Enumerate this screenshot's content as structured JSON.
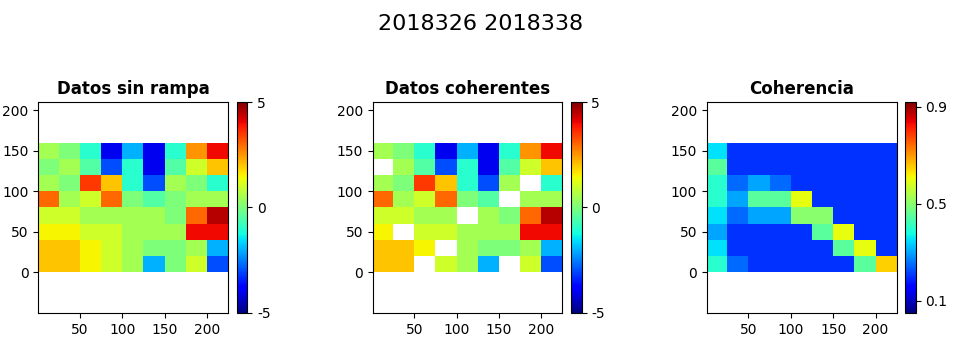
{
  "suptitle": "2018326 2018338",
  "chart_data": [
    {
      "type": "heatmap",
      "title": "Datos sin rampa",
      "x_edges": [
        0,
        25,
        50,
        75,
        100,
        125,
        150,
        175,
        200,
        225
      ],
      "y_edges": [
        0,
        20,
        40,
        60,
        80,
        100,
        120,
        140,
        160
      ],
      "z": [
        [
          2,
          2,
          1.5,
          1,
          0.5,
          -2,
          0,
          1,
          -3
        ],
        [
          2,
          2,
          1.5,
          1,
          0.5,
          0,
          0,
          0.5,
          -2
        ],
        [
          1.5,
          1.5,
          1,
          1,
          0.5,
          0.5,
          0.5,
          4,
          4
        ],
        [
          1,
          1,
          0.5,
          0.5,
          0.5,
          0.5,
          0,
          3,
          4.5
        ],
        [
          3,
          0.5,
          1,
          3,
          0,
          -0.5,
          0,
          0.5,
          0.5
        ],
        [
          0.5,
          0,
          3.5,
          2,
          -1,
          -3,
          0.5,
          0,
          -1
        ],
        [
          0,
          0.5,
          -0.5,
          -3,
          -1,
          -4,
          -0.5,
          1,
          2
        ],
        [
          0.5,
          0,
          -1,
          -4,
          -2,
          -4,
          -1,
          2.5,
          4
        ]
      ],
      "xlim": [
        1,
        225
      ],
      "xticks": [
        50,
        100,
        150,
        200
      ],
      "ylim": [
        -50,
        210
      ],
      "yticks": [
        0,
        50,
        100,
        150,
        200
      ],
      "colorbar_range": [
        -5,
        5
      ],
      "colorbar_ticks": [
        -5,
        0,
        5
      ]
    },
    {
      "type": "heatmap",
      "title": "Datos coherentes",
      "x_edges": [
        0,
        25,
        50,
        75,
        100,
        125,
        150,
        175,
        200,
        225
      ],
      "y_edges": [
        0,
        20,
        40,
        60,
        80,
        100,
        120,
        140,
        160
      ],
      "z": [
        [
          2,
          2,
          null,
          1,
          0.5,
          -2,
          null,
          1,
          -3
        ],
        [
          2,
          2,
          1.5,
          null,
          0.5,
          0,
          0,
          0.5,
          -2
        ],
        [
          1.5,
          null,
          1,
          1,
          0.5,
          0.5,
          0.5,
          4,
          4
        ],
        [
          1,
          1,
          0.5,
          0.5,
          null,
          0.5,
          0,
          3,
          4.5
        ],
        [
          3,
          0.5,
          1,
          3,
          0,
          -0.5,
          null,
          0.5,
          0.5
        ],
        [
          0.5,
          0,
          3.5,
          2,
          -1,
          -3,
          0.5,
          null,
          -1
        ],
        [
          null,
          0.5,
          -0.5,
          -3,
          -1,
          -4,
          -0.5,
          1,
          2
        ],
        [
          0.5,
          0,
          -1,
          -4,
          -2,
          -4,
          -1,
          2.5,
          4
        ]
      ],
      "xlim": [
        1,
        225
      ],
      "xticks": [
        50,
        100,
        150,
        200
      ],
      "ylim": [
        -50,
        210
      ],
      "yticks": [
        0,
        50,
        100,
        150,
        200
      ],
      "colorbar_range": [
        -5,
        5
      ],
      "colorbar_ticks": [
        -5,
        0,
        5
      ]
    },
    {
      "type": "heatmap",
      "title": "Coherencia",
      "x_edges": [
        0,
        25,
        50,
        75,
        100,
        125,
        150,
        175,
        200,
        225
      ],
      "y_edges": [
        0,
        20,
        40,
        60,
        80,
        100,
        120,
        140,
        160
      ],
      "z": [
        [
          0.4,
          0.25,
          0.2,
          0.2,
          0.2,
          0.2,
          0.2,
          0.45,
          0.65
        ],
        [
          0.35,
          0.2,
          0.2,
          0.2,
          0.2,
          0.2,
          0.45,
          0.6,
          0.2
        ],
        [
          0.3,
          0.2,
          0.2,
          0.2,
          0.2,
          0.45,
          0.6,
          0.2,
          0.2
        ],
        [
          0.35,
          0.25,
          0.3,
          0.3,
          0.5,
          0.5,
          0.2,
          0.2,
          0.2
        ],
        [
          0.4,
          0.3,
          0.45,
          0.45,
          0.6,
          0.2,
          0.2,
          0.2,
          0.2
        ],
        [
          0.4,
          0.25,
          0.3,
          0.25,
          0.2,
          0.2,
          0.2,
          0.2,
          0.2
        ],
        [
          0.45,
          0.2,
          0.2,
          0.2,
          0.2,
          0.2,
          0.2,
          0.2,
          0.2
        ],
        [
          0.35,
          0.2,
          0.2,
          0.2,
          0.2,
          0.2,
          0.2,
          0.2,
          0.2
        ]
      ],
      "xlim": [
        1,
        225
      ],
      "xticks": [
        50,
        100,
        150,
        200
      ],
      "ylim": [
        -50,
        210
      ],
      "yticks": [
        0,
        50,
        100,
        150,
        200
      ],
      "colorbar_range": [
        0.05,
        0.92
      ],
      "colorbar_ticks": [
        0.1,
        0.5,
        0.9
      ]
    }
  ]
}
